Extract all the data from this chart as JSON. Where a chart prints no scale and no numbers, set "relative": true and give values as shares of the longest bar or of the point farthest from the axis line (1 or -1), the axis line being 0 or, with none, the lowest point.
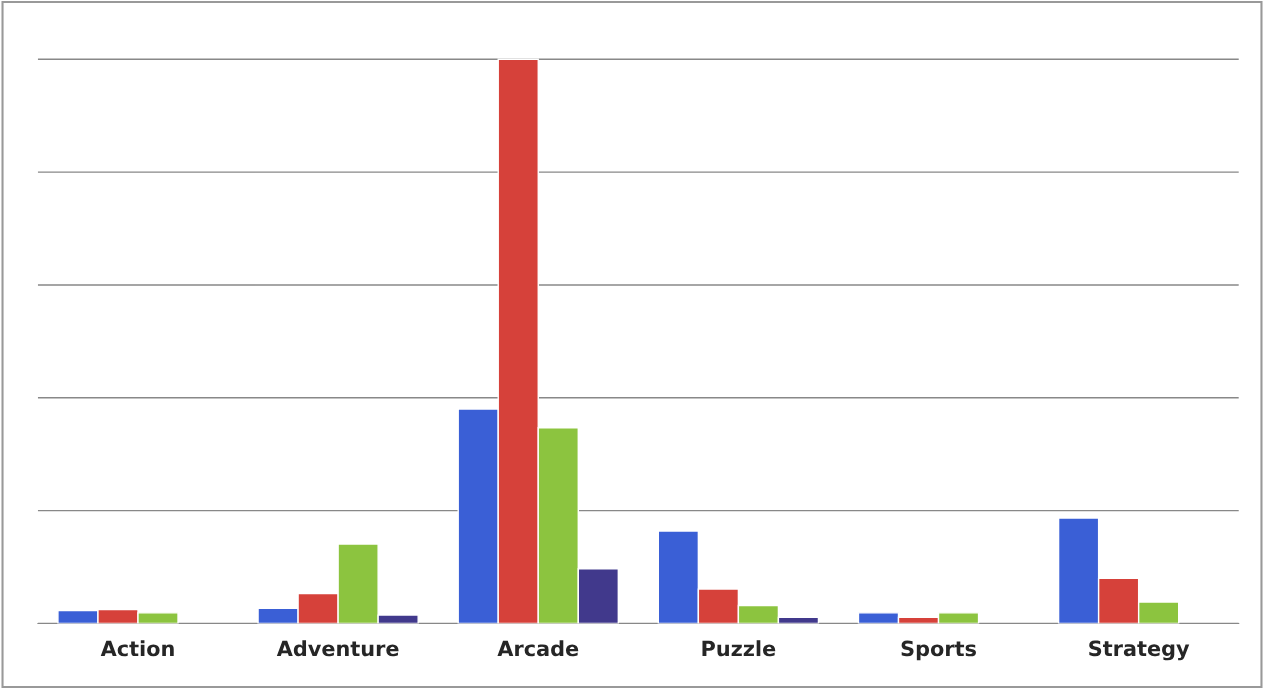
{
  "chart_data": {
    "type": "bar",
    "relative": true,
    "grid": "y",
    "categories": [
      "Action",
      "Adventure",
      "Arcade",
      "Puzzle",
      "Sports",
      "Strategy"
    ],
    "series": [
      {
        "color": "#3a5fd6",
        "values": [
          0.023,
          0.027,
          0.38,
          0.164,
          0.019,
          0.187
        ]
      },
      {
        "color": "#d6413a",
        "values": [
          0.025,
          0.053,
          1,
          0.061,
          0.011,
          0.08
        ]
      },
      {
        "color": "#8cc43f",
        "values": [
          0.019,
          0.141,
          0.347,
          0.032,
          0.019,
          0.038
        ]
      },
      {
        "color": "#41398c",
        "values": [
          null,
          0.015,
          0.097,
          0.011,
          null,
          null
        ]
      }
    ]
  }
}
